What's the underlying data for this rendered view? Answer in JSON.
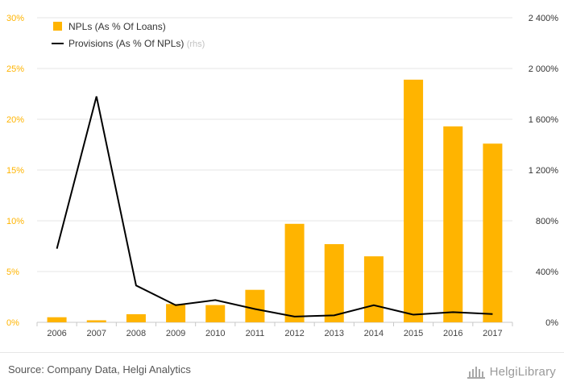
{
  "chart_data": {
    "type": "bar+line",
    "categories": [
      "2006",
      "2007",
      "2008",
      "2009",
      "2010",
      "2011",
      "2012",
      "2013",
      "2014",
      "2015",
      "2016",
      "2017"
    ],
    "series": [
      {
        "name": "NPLs (As % Of Loans)",
        "type": "bar",
        "axis": "left",
        "color": "#FFB400",
        "values": [
          0.5,
          0.2,
          0.8,
          1.8,
          1.7,
          3.2,
          9.7,
          7.7,
          6.5,
          23.9,
          19.3,
          17.6
        ]
      },
      {
        "name": "Provisions (As % Of NPLs)",
        "axis_note": "(rhs)",
        "type": "line",
        "axis": "right",
        "color": "#000000",
        "values": [
          580,
          1780,
          290,
          135,
          175,
          105,
          45,
          55,
          135,
          60,
          80,
          65
        ]
      }
    ],
    "y_left": {
      "min": 0,
      "max": 30,
      "step": 5,
      "tick_labels": [
        "0%",
        "5%",
        "10%",
        "15%",
        "20%",
        "25%",
        "30%"
      ]
    },
    "y_right": {
      "min": 0,
      "max": 2400,
      "step": 400,
      "tick_labels": [
        "0%",
        "400%",
        "800%",
        "1 200%",
        "1 600%",
        "2 000%",
        "2 400%"
      ]
    },
    "grid": true,
    "legend_position": "top-left"
  },
  "footer": {
    "source": "Source: Company Data, Helgi Analytics",
    "logo_text": "HelgiLibrary"
  },
  "colors": {
    "left_axis_text": "#FFB400",
    "right_axis_text": "#333333",
    "grid": "#e6e6e6"
  }
}
